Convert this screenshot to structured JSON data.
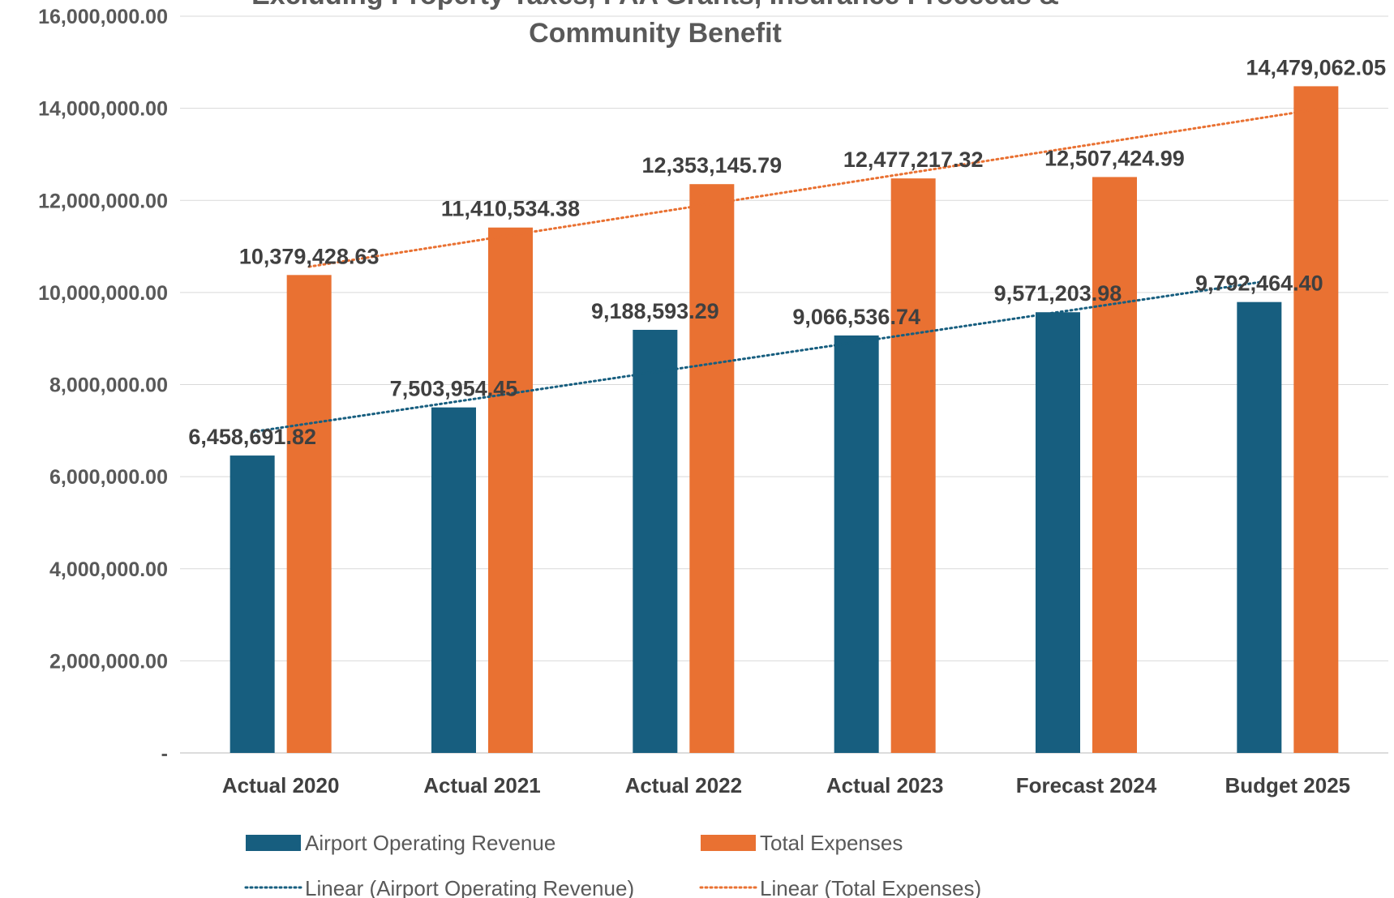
{
  "chart_data": {
    "type": "bar",
    "title": "Excluding Property Taxes, FAA Grants, Insurance Proceeds & Community Benefit",
    "title_lines": [
      "Excluding Property Taxes, FAA Grants, Insurance Proceeds &",
      "Community Benefit"
    ],
    "categories": [
      "Actual 2020",
      "Actual 2021",
      "Actual 2022",
      "Actual 2023",
      "Forecast 2024",
      "Budget 2025"
    ],
    "series": [
      {
        "name": "Airport Operating Revenue",
        "color": "#175E7F",
        "values": [
          6458691.82,
          7503954.45,
          9188593.29,
          9066536.74,
          9571203.98,
          9792464.4
        ],
        "labels": [
          "6,458,691.82",
          "7,503,954.45",
          "9,188,593.29",
          "9,066,536.74",
          "9,571,203.98",
          "9,792,464.40"
        ]
      },
      {
        "name": "Total Expenses",
        "color": "#E97132",
        "values": [
          10379428.63,
          11410534.38,
          12353145.79,
          12477217.32,
          12507424.99,
          14479062.05
        ],
        "labels": [
          "10,379,428.63",
          "11,410,534.38",
          "12,353,145.79",
          "12,477,217.32",
          "12,507,424.99",
          "14,479,062.05"
        ]
      }
    ],
    "trendlines": [
      {
        "name": "Linear (Airport Operating Revenue)",
        "series": 0,
        "type": "linear",
        "style": "dotted",
        "color": "#175E7F"
      },
      {
        "name": "Linear (Total Expenses)",
        "series": 1,
        "type": "linear",
        "style": "dotted",
        "color": "#E97132"
      }
    ],
    "yaxis": {
      "min": 0,
      "max": 16000000,
      "step": 2000000,
      "tick_labels": [
        "-",
        "2,000,000.00",
        "4,000,000.00",
        "6,000,000.00",
        "8,000,000.00",
        "10,000,000.00",
        "12,000,000.00",
        "14,000,000.00",
        "16,000,000.00"
      ]
    },
    "xlabel": "",
    "ylabel": "",
    "grid": true,
    "legend_position": "bottom"
  }
}
